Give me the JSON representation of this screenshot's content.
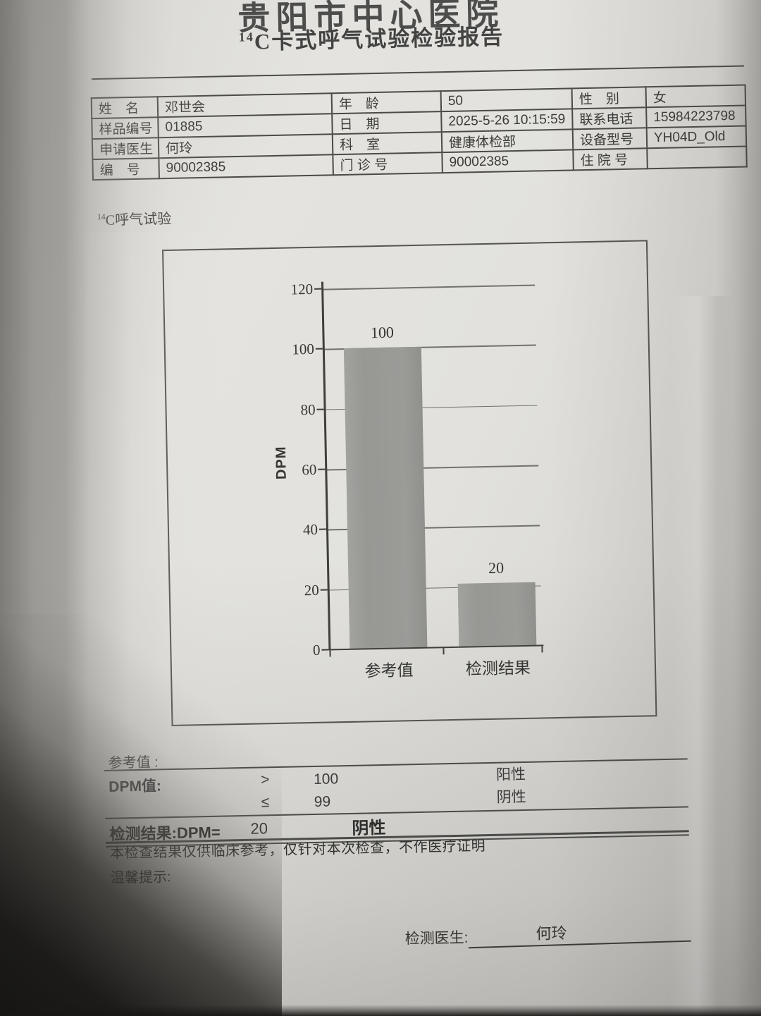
{
  "titles": {
    "hospital": "贵阳市中心医院",
    "isotope": "14",
    "report_rest": "C卡式呼气试验检验报告",
    "section_isotope": "14",
    "section_rest": "C呼气试验"
  },
  "patient_table": {
    "rows": [
      {
        "c0l": "姓　名",
        "c0v": "邓世会",
        "c1l": "年　龄",
        "c1v": "50",
        "c2l": "性　别",
        "c2v": "女"
      },
      {
        "c0l": "样品编号",
        "c0v": "01885",
        "c1l": "日　期",
        "c1v": "2025-5-26 10:15:59",
        "c2l": "联系电话",
        "c2v": "15984223798"
      },
      {
        "c0l": "申请医生",
        "c0v": "何玲",
        "c1l": "科　室",
        "c1v": "健康体检部",
        "c2l": "设备型号",
        "c2v": "YH04D_Old"
      },
      {
        "c0l": "编　号",
        "c0v": "90002385",
        "c1l": "门 诊 号",
        "c1v": "90002385",
        "c2l": "住 院 号",
        "c2v": ""
      }
    ]
  },
  "chart_data": {
    "type": "bar",
    "title": "",
    "categories": [
      "参考值",
      "检测结果"
    ],
    "values": [
      100,
      20
    ],
    "value_labels": [
      "100",
      "20"
    ],
    "visual_values": [
      100,
      21
    ],
    "xlabel": "",
    "ylabel": "DPM",
    "ylim": [
      0,
      120
    ],
    "yticks": [
      0,
      20,
      40,
      60,
      80,
      100,
      120
    ],
    "ytick_labels_desc": [
      "120",
      "100",
      "80",
      "60",
      "40",
      "20",
      "0"
    ],
    "grid": true,
    "legend": false,
    "bar_color": "#9b9b98"
  },
  "reference": {
    "heading": "参考值 :",
    "dpm_label": "DPM值:",
    "row_positive": {
      "op": ">",
      "value": "100",
      "result": "阳性"
    },
    "row_negative": {
      "op": "≤",
      "value": "99",
      "result": "阴性"
    },
    "result_line": {
      "label": "检测结果:DPM=",
      "value": "20",
      "verdict": "阴性"
    },
    "disclaimer": "本检查结果仅供临床参考，仅针对本次检查，不作医疗证明",
    "tips_label": "温馨提示:",
    "doctor_label": "检测医生:",
    "doctor_name": "何玲"
  }
}
